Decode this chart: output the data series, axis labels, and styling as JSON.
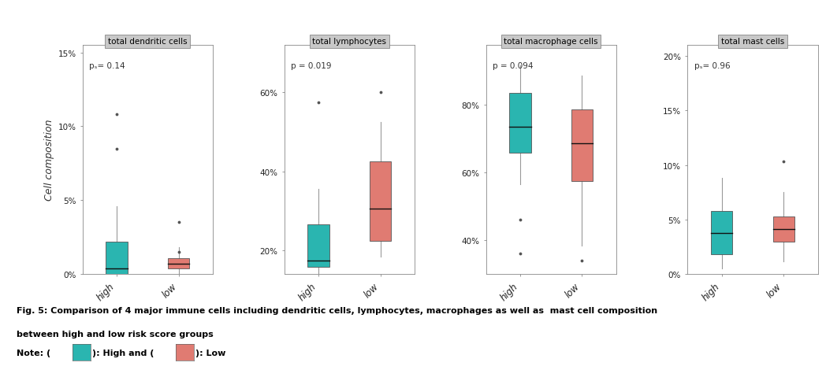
{
  "panels": [
    {
      "title": "total dendritic cells",
      "pvalue": "pₛ= 0.14",
      "ylim": [
        0,
        0.155
      ],
      "yticks": [
        0,
        0.05,
        0.1,
        0.15
      ],
      "yticklabels": [
        "0%",
        "5%",
        "10%",
        "15%"
      ],
      "high": {
        "whisker_low": 0.0,
        "q1": 0.0,
        "median": 0.004,
        "q3": 0.022,
        "whisker_high": 0.046,
        "outliers": [
          0.108,
          0.085
        ]
      },
      "low": {
        "whisker_low": 0.0,
        "q1": 0.004,
        "median": 0.007,
        "q3": 0.011,
        "whisker_high": 0.018,
        "outliers": [
          0.035,
          0.015
        ]
      }
    },
    {
      "title": "total lymphocytes",
      "pvalue": "p = 0.019",
      "ylim": [
        0.14,
        0.72
      ],
      "yticks": [
        0.2,
        0.4,
        0.6
      ],
      "yticklabels": [
        "20%",
        "40%",
        "60%"
      ],
      "high": {
        "whisker_low": 0.135,
        "q1": 0.158,
        "median": 0.175,
        "q3": 0.265,
        "whisker_high": 0.355,
        "outliers": [
          0.575
        ]
      },
      "low": {
        "whisker_low": 0.185,
        "q1": 0.225,
        "median": 0.305,
        "q3": 0.425,
        "whisker_high": 0.525,
        "outliers": [
          0.6
        ]
      }
    },
    {
      "title": "total macrophage cells",
      "pvalue": "p = 0.094",
      "ylim": [
        0.3,
        0.975
      ],
      "yticks": [
        0.4,
        0.6,
        0.8
      ],
      "yticklabels": [
        "40%",
        "60%",
        "80%"
      ],
      "high": {
        "whisker_low": 0.565,
        "q1": 0.658,
        "median": 0.735,
        "q3": 0.835,
        "whisker_high": 0.915,
        "outliers": [
          0.36,
          0.46
        ]
      },
      "low": {
        "whisker_low": 0.385,
        "q1": 0.575,
        "median": 0.685,
        "q3": 0.785,
        "whisker_high": 0.885,
        "outliers": [
          0.34
        ]
      }
    },
    {
      "title": "total mast cells",
      "pvalue": "pₛ= 0.96",
      "ylim": [
        0,
        0.21
      ],
      "yticks": [
        0,
        0.05,
        0.1,
        0.15,
        0.2
      ],
      "yticklabels": [
        "0%",
        "5%",
        "10%",
        "15%",
        "20%"
      ],
      "high": {
        "whisker_low": 0.005,
        "q1": 0.018,
        "median": 0.038,
        "q3": 0.058,
        "whisker_high": 0.088,
        "outliers": []
      },
      "low": {
        "whisker_low": 0.012,
        "q1": 0.03,
        "median": 0.041,
        "q3": 0.053,
        "whisker_high": 0.075,
        "outliers": [
          0.103
        ]
      }
    }
  ],
  "color_high": "#2ab5b0",
  "color_low": "#e07b72",
  "background_color": "#ffffff",
  "panel_header_color": "#c8c8c8",
  "box_width": 0.35,
  "ylabel": "Cell composition"
}
